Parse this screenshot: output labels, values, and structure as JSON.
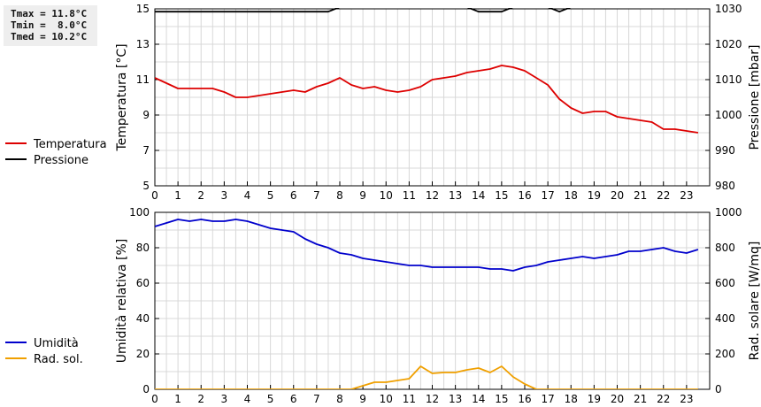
{
  "stats": {
    "tmax": "Tmax = 11.8°C",
    "tmin": "Tmin =  8.0°C",
    "tmed": "Tmed = 10.2°C"
  },
  "chart_data": [
    {
      "type": "line",
      "x_ticks": [
        "0",
        "1",
        "2",
        "3",
        "4",
        "5",
        "6",
        "7",
        "8",
        "9",
        "10",
        "11",
        "12",
        "13",
        "14",
        "15",
        "16",
        "17",
        "18",
        "19",
        "20",
        "21",
        "22",
        "23"
      ],
      "xlim": [
        0,
        24
      ],
      "ylabel": "Temperatura [°C]",
      "ylim": [
        5,
        15
      ],
      "y_ticks": [
        "5",
        "7",
        "9",
        "11",
        "13",
        "15"
      ],
      "y2label": "Pressione [mbar]",
      "y2lim": [
        980,
        1030
      ],
      "y2_ticks": [
        "980",
        "990",
        "1000",
        "1010",
        "1020",
        "1030"
      ],
      "grid": true,
      "legend_position": "left",
      "series": [
        {
          "name": "Temperatura",
          "axis": "left",
          "color": "#dd0000",
          "x": [
            0,
            0.5,
            1,
            1.5,
            2,
            2.5,
            3,
            3.5,
            4,
            4.5,
            5,
            5.5,
            6,
            6.5,
            7,
            7.5,
            8,
            8.5,
            9,
            9.5,
            10,
            10.5,
            11,
            11.5,
            12,
            12.5,
            13,
            13.5,
            14,
            14.5,
            15,
            15.5,
            16,
            16.5,
            17,
            17.5,
            18,
            18.5,
            19,
            19.5,
            20,
            20.5,
            21,
            21.5,
            22,
            22.5,
            23,
            23.5
          ],
          "values": [
            11.1,
            10.8,
            10.5,
            10.5,
            10.5,
            10.5,
            10.3,
            10.0,
            10.0,
            10.1,
            10.2,
            10.3,
            10.4,
            10.3,
            10.6,
            10.8,
            11.1,
            10.7,
            10.5,
            10.6,
            10.4,
            10.3,
            10.4,
            10.6,
            11.0,
            11.1,
            11.2,
            11.4,
            11.5,
            11.6,
            11.8,
            11.7,
            11.5,
            11.1,
            10.7,
            9.9,
            9.4,
            9.1,
            9.2,
            9.2,
            8.9,
            8.8,
            8.7,
            8.6,
            8.2,
            8.2,
            8.1,
            8.0
          ]
        },
        {
          "name": "Pressione",
          "axis": "right",
          "color": "#000000",
          "x": [
            0,
            7.5,
            8,
            13.5,
            14,
            14.5,
            15,
            15.5,
            17,
            17.5,
            18,
            23.5
          ],
          "values": [
            1029.2,
            1029.2,
            1030.5,
            1030.5,
            1029.2,
            1029.2,
            1029.2,
            1030.5,
            1030.5,
            1029.2,
            1030.5,
            1030.5
          ]
        }
      ]
    },
    {
      "type": "line",
      "x_ticks": [
        "0",
        "1",
        "2",
        "3",
        "4",
        "5",
        "6",
        "7",
        "8",
        "9",
        "10",
        "11",
        "12",
        "13",
        "14",
        "15",
        "16",
        "17",
        "18",
        "19",
        "20",
        "21",
        "22",
        "23"
      ],
      "xlim": [
        0,
        24
      ],
      "ylabel": "Umidità relativa [%]",
      "ylim": [
        0,
        100
      ],
      "y_ticks": [
        "0",
        "20",
        "40",
        "60",
        "80",
        "100"
      ],
      "y2label": "Rad. solare [W/mq]",
      "y2lim": [
        0,
        1000
      ],
      "y2_ticks": [
        "0",
        "200",
        "400",
        "600",
        "800",
        "1000"
      ],
      "grid": true,
      "legend_position": "left",
      "series": [
        {
          "name": "Umidità",
          "axis": "left",
          "color": "#0000cc",
          "x": [
            0,
            0.5,
            1,
            1.5,
            2,
            2.5,
            3,
            3.5,
            4,
            4.5,
            5,
            5.5,
            6,
            6.5,
            7,
            7.5,
            8,
            8.5,
            9,
            9.5,
            10,
            10.5,
            11,
            11.5,
            12,
            12.5,
            13,
            13.5,
            14,
            14.5,
            15,
            15.5,
            16,
            16.5,
            17,
            17.5,
            18,
            18.5,
            19,
            19.5,
            20,
            20.5,
            21,
            21.5,
            22,
            22.5,
            23,
            23.5
          ],
          "values": [
            92,
            94,
            96,
            95,
            96,
            95,
            95,
            96,
            95,
            93,
            91,
            90,
            89,
            85,
            82,
            80,
            77,
            76,
            74,
            73,
            72,
            71,
            70,
            70,
            69,
            69,
            69,
            69,
            69,
            68,
            68,
            67,
            69,
            70,
            72,
            73,
            74,
            75,
            74,
            75,
            76,
            78,
            78,
            79,
            80,
            78,
            77,
            79
          ]
        },
        {
          "name": "Rad. sol.",
          "axis": "right",
          "color": "#f0a000",
          "x": [
            0,
            8.5,
            9,
            9.5,
            10,
            10.5,
            11,
            11.5,
            12,
            12.5,
            13,
            13.5,
            14,
            14.5,
            15,
            15.5,
            16,
            16.5,
            23.5
          ],
          "values": [
            0,
            0,
            20,
            40,
            40,
            50,
            60,
            130,
            90,
            95,
            95,
            110,
            120,
            95,
            130,
            70,
            30,
            0,
            0
          ]
        }
      ]
    }
  ]
}
